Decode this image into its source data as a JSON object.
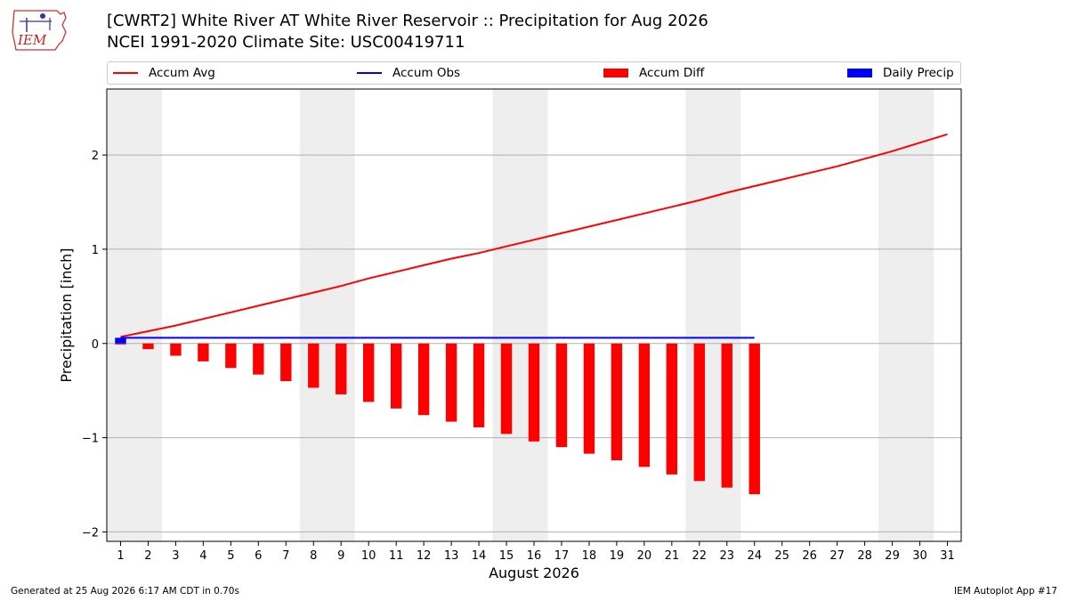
{
  "header": {
    "title_line1": "[CWRT2] White River  AT White River Reservoir :: Precipitation for Aug 2026",
    "title_line2": "NCEI 1991-2020 Climate Site: USC00419711",
    "logo_text": "IEM"
  },
  "legend": {
    "items": [
      {
        "label": "Accum Avg",
        "color": "#ff0000",
        "kind": "line"
      },
      {
        "label": "Accum Obs",
        "color": "#0000ff",
        "kind": "line"
      },
      {
        "label": "Accum Diff",
        "color": "#ff0000",
        "kind": "box"
      },
      {
        "label": "Daily Precip",
        "color": "#0000ff",
        "kind": "box"
      }
    ]
  },
  "footer": {
    "generated": "Generated at 25 Aug 2026 6:17 AM CDT in 0.70s",
    "app": "IEM Autoplot App #17"
  },
  "chart_data": {
    "type": "bar",
    "xlabel": "August 2026",
    "ylabel": "Precipitation [inch]",
    "xlim": [
      0.5,
      31.5
    ],
    "ylim": [
      -2.1,
      2.7
    ],
    "yticks": [
      -2,
      -1,
      0,
      1,
      2
    ],
    "ytick_labels": [
      "−2",
      "−1",
      "0",
      "1",
      "2"
    ],
    "xticks": [
      1,
      2,
      3,
      4,
      5,
      6,
      7,
      8,
      9,
      10,
      11,
      12,
      13,
      14,
      15,
      16,
      17,
      18,
      19,
      20,
      21,
      22,
      23,
      24,
      25,
      26,
      27,
      28,
      29,
      30,
      31
    ],
    "grid": "y",
    "weekend_shading": [
      [
        1,
        2
      ],
      [
        8,
        9
      ],
      [
        15,
        16
      ],
      [
        22,
        23
      ],
      [
        29,
        30
      ]
    ],
    "series": [
      {
        "name": "Accum Avg",
        "type": "line",
        "color": "#ff0000",
        "x": [
          1,
          2,
          3,
          4,
          5,
          6,
          7,
          8,
          9,
          10,
          11,
          12,
          13,
          14,
          15,
          16,
          17,
          18,
          19,
          20,
          21,
          22,
          23,
          24,
          25,
          26,
          27,
          28,
          29,
          30,
          31
        ],
        "values": [
          0.07,
          0.13,
          0.19,
          0.26,
          0.33,
          0.4,
          0.47,
          0.54,
          0.61,
          0.69,
          0.76,
          0.83,
          0.9,
          0.96,
          1.03,
          1.1,
          1.17,
          1.24,
          1.31,
          1.38,
          1.45,
          1.52,
          1.6,
          1.67,
          1.74,
          1.81,
          1.88,
          1.96,
          2.04,
          2.13,
          2.22
        ]
      },
      {
        "name": "Accum Obs",
        "type": "line",
        "color": "#0000ff",
        "x": [
          1,
          2,
          3,
          4,
          5,
          6,
          7,
          8,
          9,
          10,
          11,
          12,
          13,
          14,
          15,
          16,
          17,
          18,
          19,
          20,
          21,
          22,
          23,
          24
        ],
        "values": [
          0.06,
          0.06,
          0.06,
          0.06,
          0.06,
          0.06,
          0.06,
          0.06,
          0.06,
          0.06,
          0.06,
          0.06,
          0.06,
          0.06,
          0.06,
          0.06,
          0.06,
          0.06,
          0.06,
          0.06,
          0.06,
          0.06,
          0.06,
          0.06
        ]
      },
      {
        "name": "Accum Diff",
        "type": "bar",
        "color": "#ff0000",
        "x": [
          1,
          2,
          3,
          4,
          5,
          6,
          7,
          8,
          9,
          10,
          11,
          12,
          13,
          14,
          15,
          16,
          17,
          18,
          19,
          20,
          21,
          22,
          23,
          24
        ],
        "values": [
          -0.01,
          -0.06,
          -0.13,
          -0.19,
          -0.26,
          -0.33,
          -0.4,
          -0.47,
          -0.54,
          -0.62,
          -0.69,
          -0.76,
          -0.83,
          -0.89,
          -0.96,
          -1.04,
          -1.1,
          -1.17,
          -1.24,
          -1.31,
          -1.39,
          -1.46,
          -1.53,
          -1.6
        ]
      },
      {
        "name": "Daily Precip",
        "type": "bar",
        "color": "#0000ff",
        "x": [
          1
        ],
        "values": [
          0.06
        ]
      }
    ]
  }
}
